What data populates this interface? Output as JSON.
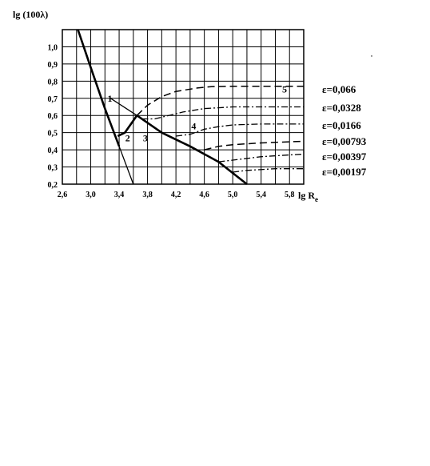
{
  "chart_data": {
    "type": "line",
    "title": "",
    "ylabel": "lg (100λ)",
    "xlabel": "lg R",
    "xlabel_subscript": "e",
    "xlim": [
      2.6,
      6.0
    ],
    "ylim": [
      0.2,
      1.1
    ],
    "x_ticks": [
      2.6,
      3.0,
      3.4,
      3.8,
      4.2,
      4.6,
      5.0,
      5.4,
      5.8
    ],
    "x_tick_labels": [
      "2,6",
      "3,0",
      "3,4",
      "3,8",
      "4,2",
      "4,6",
      "5,0",
      "5,4",
      "5,8"
    ],
    "y_ticks": [
      0.2,
      0.3,
      0.4,
      0.5,
      0.6,
      0.7,
      0.8,
      0.9,
      1.0
    ],
    "y_tick_labels": [
      "0,2",
      "0,3",
      "0,4",
      "0,5",
      "0,6",
      "0,7",
      "0,8",
      "0,9",
      "1,0"
    ],
    "grid": true,
    "curve_numbers": [
      {
        "text": "1",
        "x": 3.27,
        "y": 0.68
      },
      {
        "text": "2",
        "x": 3.52,
        "y": 0.45
      },
      {
        "text": "3",
        "x": 3.77,
        "y": 0.45
      },
      {
        "text": "4",
        "x": 4.45,
        "y": 0.52
      },
      {
        "text": "5",
        "x": 5.73,
        "y": 0.735
      }
    ],
    "series": [
      {
        "style": "thick",
        "points": [
          [
            2.82,
            1.1
          ],
          [
            3.0,
            0.88
          ],
          [
            3.2,
            0.64
          ],
          [
            3.4,
            0.42
          ]
        ]
      },
      {
        "style": "thin",
        "points": [
          [
            3.0,
            0.88
          ],
          [
            3.2,
            0.64
          ],
          [
            3.4,
            0.42
          ],
          [
            3.6,
            0.2
          ]
        ]
      },
      {
        "style": "thin",
        "points": [
          [
            3.28,
            0.7
          ],
          [
            3.65,
            0.6
          ]
        ]
      },
      {
        "style": "thick",
        "points": [
          [
            3.38,
            0.48
          ],
          [
            3.48,
            0.5
          ],
          [
            3.65,
            0.6
          ]
        ]
      },
      {
        "style": "thick",
        "points": [
          [
            3.65,
            0.6
          ],
          [
            4.0,
            0.5
          ],
          [
            4.4,
            0.42
          ],
          [
            4.8,
            0.33
          ],
          [
            5.2,
            0.2
          ]
        ]
      },
      {
        "style": "dashed",
        "points": [
          [
            3.65,
            0.6
          ],
          [
            3.8,
            0.66
          ],
          [
            4.0,
            0.71
          ],
          [
            4.2,
            0.74
          ],
          [
            4.5,
            0.76
          ],
          [
            4.7,
            0.768
          ],
          [
            5.0,
            0.77
          ],
          [
            6.0,
            0.77
          ]
        ]
      },
      {
        "style": "dashdot",
        "points": [
          [
            3.72,
            0.58
          ],
          [
            3.9,
            0.58
          ],
          [
            4.1,
            0.6
          ],
          [
            4.3,
            0.62
          ],
          [
            4.6,
            0.64
          ],
          [
            4.8,
            0.645
          ],
          [
            5.0,
            0.65
          ],
          [
            6.0,
            0.65
          ]
        ]
      },
      {
        "style": "dashdot",
        "points": [
          [
            4.2,
            0.48
          ],
          [
            4.4,
            0.49
          ],
          [
            4.6,
            0.52
          ],
          [
            4.8,
            0.535
          ],
          [
            5.0,
            0.545
          ],
          [
            5.4,
            0.55
          ],
          [
            6.0,
            0.55
          ]
        ]
      },
      {
        "style": "dashed",
        "points": [
          [
            4.6,
            0.4
          ],
          [
            4.8,
            0.42
          ],
          [
            5.0,
            0.43
          ],
          [
            5.4,
            0.44
          ],
          [
            6.0,
            0.45
          ]
        ]
      },
      {
        "style": "dashdot",
        "points": [
          [
            4.8,
            0.33
          ],
          [
            5.0,
            0.34
          ],
          [
            5.4,
            0.36
          ],
          [
            5.8,
            0.37
          ],
          [
            6.0,
            0.375
          ]
        ]
      },
      {
        "style": "dashdot",
        "points": [
          [
            5.0,
            0.27
          ],
          [
            5.2,
            0.28
          ],
          [
            5.6,
            0.29
          ],
          [
            6.0,
            0.29
          ]
        ]
      }
    ],
    "legend": [
      "ε=0,066",
      "ε=0,0328",
      "ε=0,0166",
      "ε=0,00793",
      "ε=0,00397",
      "ε=0,00197"
    ]
  }
}
